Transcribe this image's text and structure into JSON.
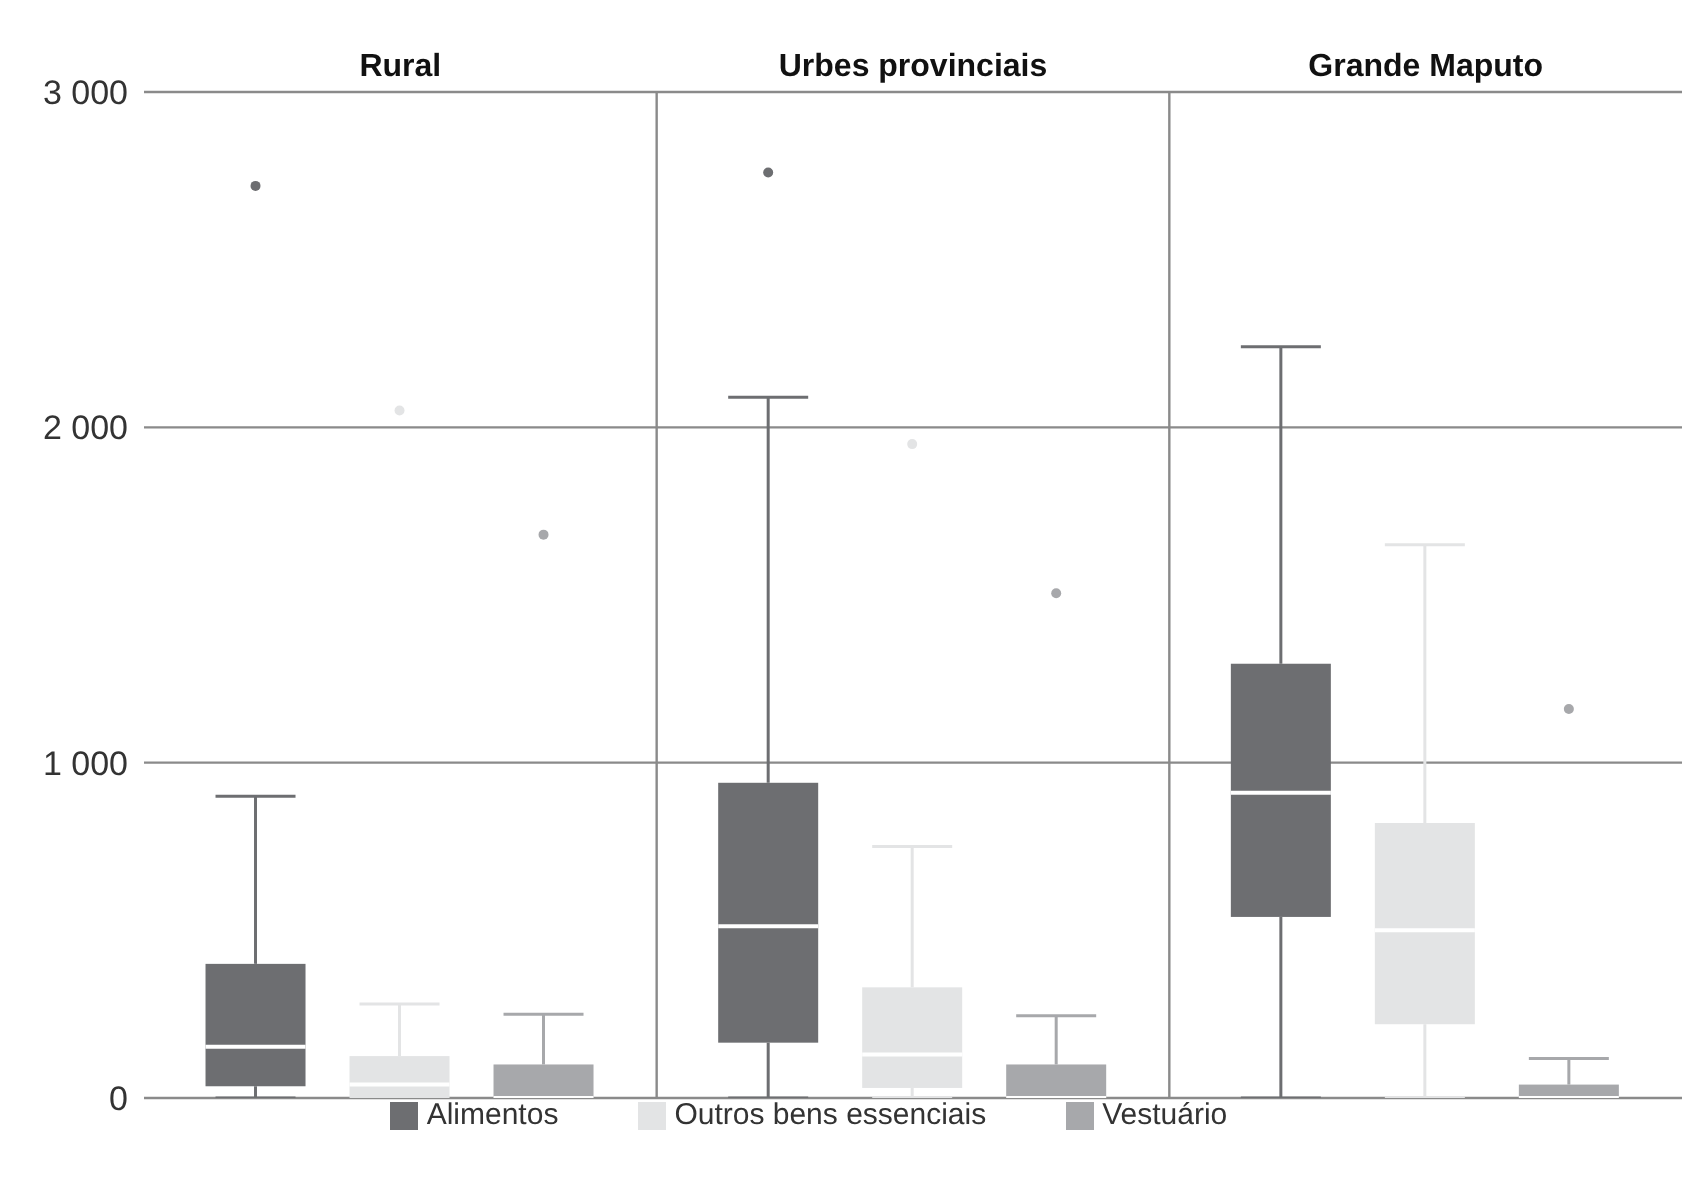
{
  "chart_data": {
    "type": "box",
    "categories": [
      "Rural",
      "Urbes provinciais",
      "Grande Maputo"
    ],
    "series": [
      {
        "name": "Alimentos",
        "color": "#6d6e71",
        "boxes": [
          {
            "low": 0,
            "q1": 35,
            "median": 153,
            "q3": 400,
            "high": 900,
            "outliers": [
              2720
            ]
          },
          {
            "low": 0,
            "q1": 165,
            "median": 512,
            "q3": 940,
            "high": 2090,
            "outliers": [
              2760
            ]
          },
          {
            "low": 0,
            "q1": 540,
            "median": 910,
            "q3": 1295,
            "high": 2240
          }
        ]
      },
      {
        "name": "Outros bens essenciais",
        "color": "#e3e4e5",
        "boxes": [
          {
            "low": 0,
            "q1": 0,
            "median": 40,
            "q3": 125,
            "high": 280,
            "outliers": [
              2050
            ]
          },
          {
            "low": 0,
            "q1": 30,
            "median": 130,
            "q3": 330,
            "high": 750,
            "outliers": [
              1950
            ]
          },
          {
            "low": 0,
            "q1": 220,
            "median": 500,
            "q3": 820,
            "high": 1650
          }
        ]
      },
      {
        "name": "Vestuário",
        "color": "#a7a8ab",
        "boxes": [
          {
            "low": 0,
            "q1": 0,
            "median": 0,
            "q3": 100,
            "high": 250,
            "outliers": [
              1680
            ]
          },
          {
            "low": 0,
            "q1": 0,
            "median": 0,
            "q3": 100,
            "high": 245,
            "outliers": [
              1505
            ]
          },
          {
            "low": 0,
            "q1": 0,
            "median": 0,
            "q3": 40,
            "high": 118,
            "outliers": [
              1160
            ]
          }
        ]
      }
    ],
    "ylim": [
      0,
      3000
    ],
    "yticks": [
      {
        "value": 0,
        "label": "0"
      },
      {
        "value": 1000,
        "label": "1 000"
      },
      {
        "value": 2000,
        "label": "2 000"
      },
      {
        "value": 3000,
        "label": "3 000"
      }
    ],
    "grid": "y",
    "legend": "bottom"
  }
}
